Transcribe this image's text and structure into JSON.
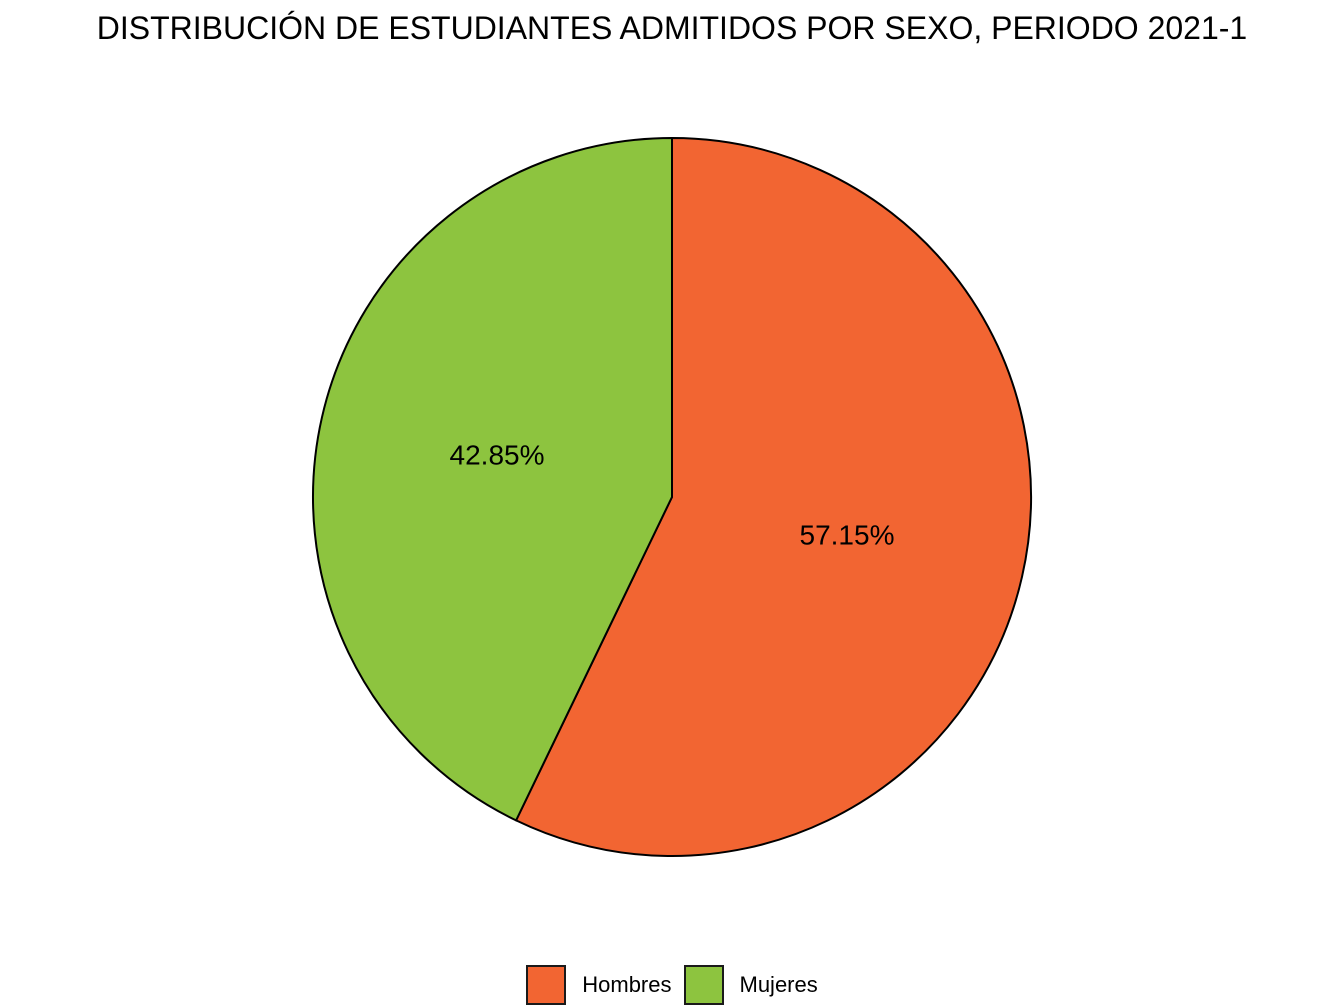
{
  "chart_data": {
    "type": "pie",
    "title": "DISTRIBUCIÓN DE ESTUDIANTES ADMITIDOS POR SEXO, PERIODO 2021-1",
    "categories": [
      "Hombres",
      "Mujeres"
    ],
    "values": [
      57.15,
      42.85
    ],
    "labels": [
      "57.15%",
      "42.85%"
    ],
    "colors": [
      "#F26532",
      "#8DC43F"
    ],
    "legend_position": "bottom"
  }
}
